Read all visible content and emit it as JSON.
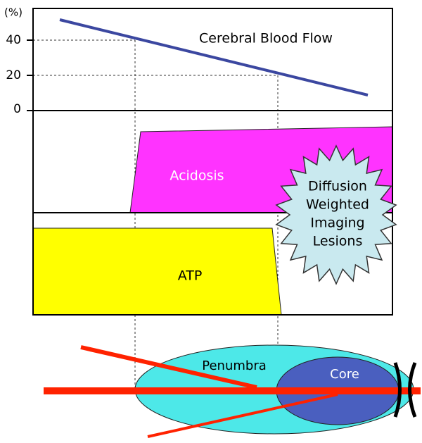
{
  "axis": {
    "unit": "(%)",
    "ticks": [
      40,
      20,
      0
    ]
  },
  "panels": {
    "blood_flow": "Cerebral Blood Flow",
    "acidosis": "Acidosis",
    "atp": "ATP"
  },
  "lesion": {
    "lines": [
      "Diffusion",
      "Weighted",
      "Imaging",
      "Lesions"
    ]
  },
  "regions": {
    "penumbra": "Penumbra",
    "core": "Core"
  }
}
